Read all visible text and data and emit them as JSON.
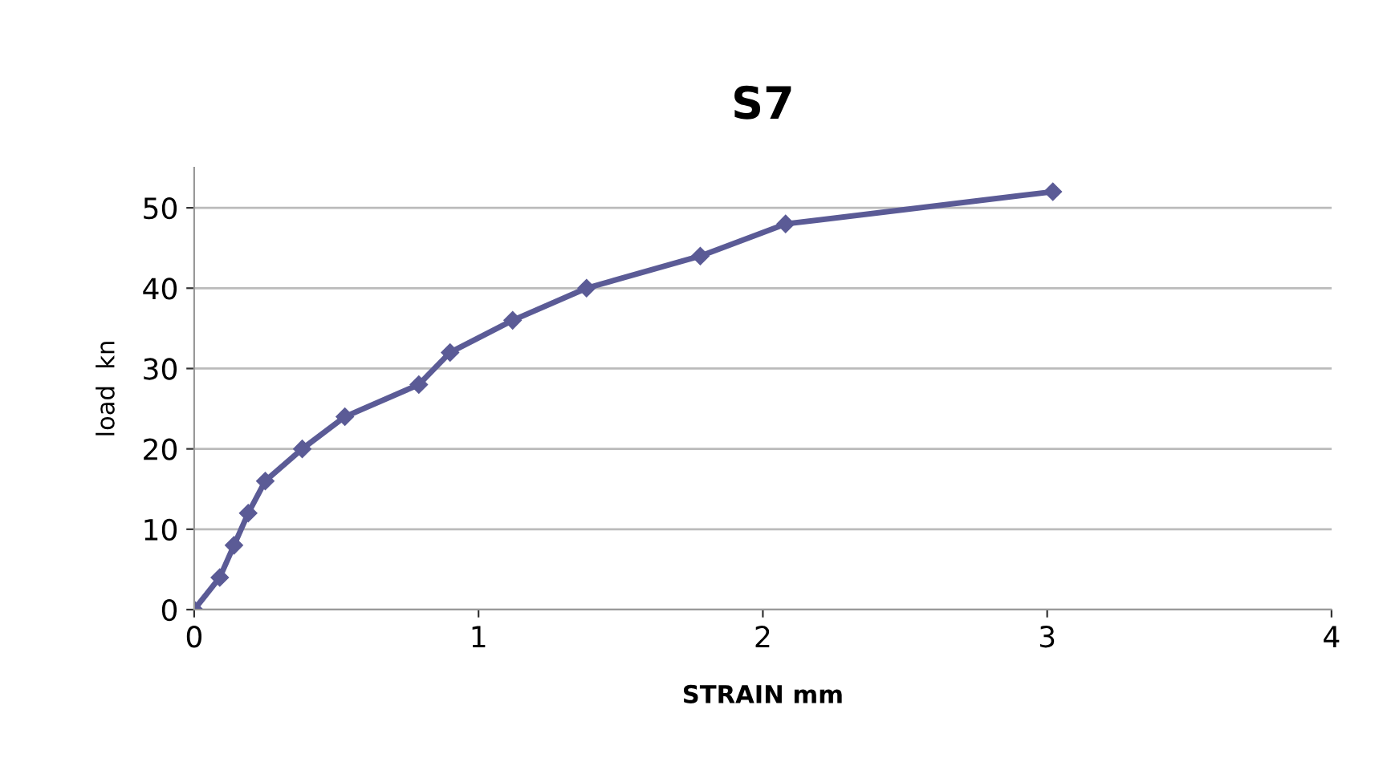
{
  "chart_data": {
    "type": "line",
    "title": "S7",
    "xlabel": "STRAIN mm",
    "ylabel": "load  kn",
    "series": [
      {
        "color": "#5b5b96",
        "x": [
          0,
          0.09,
          0.14,
          0.19,
          0.25,
          0.38,
          0.53,
          0.79,
          0.9,
          1.12,
          1.38,
          1.78,
          2.08,
          3.02
        ],
        "values": [
          0,
          4,
          8,
          12,
          16,
          20,
          24,
          28,
          32,
          36,
          40,
          44,
          48,
          52
        ]
      }
    ],
    "xlim": [
      0,
      4
    ],
    "xticks": [
      0,
      1,
      2,
      3,
      4
    ],
    "ylim": [
      0,
      55
    ],
    "yticks": [
      0,
      10,
      20,
      30,
      40,
      50
    ],
    "grid": "y",
    "marker": "diamond",
    "line_style": "solid",
    "legend": false
  }
}
